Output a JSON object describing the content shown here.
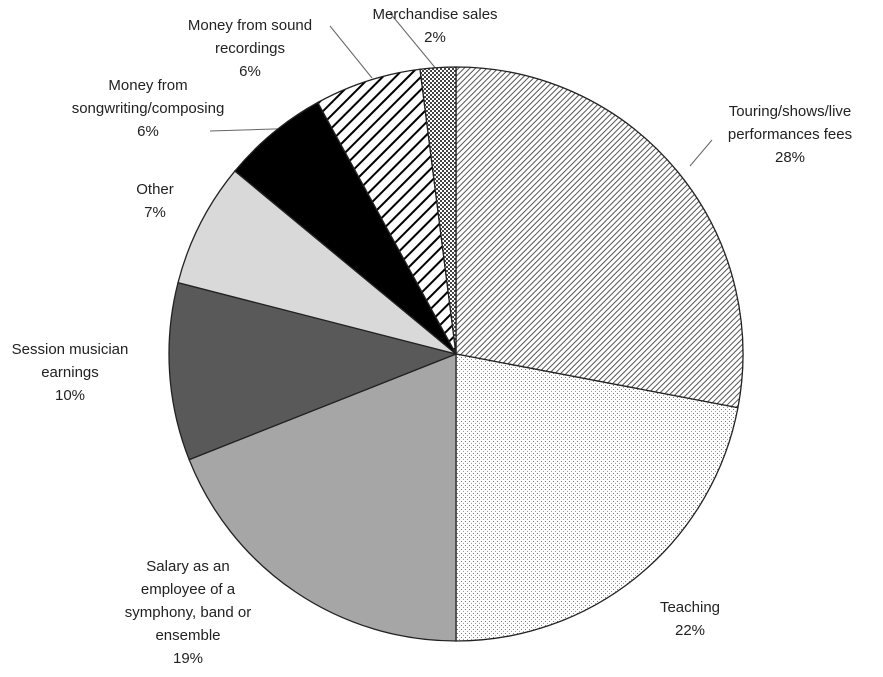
{
  "chart_data": {
    "type": "pie",
    "categories": [
      "Touring/shows/live performances fees",
      "Teaching",
      "Salary as an employee of a symphony, band or ensemble",
      "Session musician earnings",
      "Other",
      "Money from songwriting/composing",
      "Money from sound recordings",
      "Merchandise sales"
    ],
    "values": [
      28,
      22,
      19,
      10,
      7,
      6,
      6,
      2
    ],
    "value_labels": [
      "28%",
      "22%",
      "19%",
      "10%",
      "7%",
      "6%",
      "6%",
      "2%"
    ],
    "fills": [
      "diagonal-hatch",
      "dots",
      "#a6a6a6",
      "#595959",
      "#d9d9d9",
      "#000000",
      "wide-stripes",
      "checker"
    ]
  }
}
